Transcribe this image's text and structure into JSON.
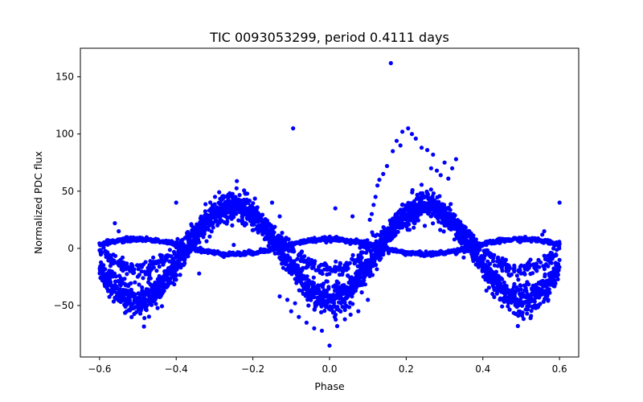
{
  "chart_data": {
    "type": "scatter",
    "title": "TIC 0093053299, period 0.4111 days",
    "xlabel": "Phase",
    "ylabel": "Normalized PDC flux",
    "xlim": [
      -0.65,
      0.65
    ],
    "ylim": [
      -95,
      175
    ],
    "xticks": [
      -0.6,
      -0.4,
      -0.2,
      0.0,
      0.2,
      0.4,
      0.6
    ],
    "xtick_labels": [
      "−0.6",
      "−0.4",
      "−0.2",
      "0.0",
      "0.2",
      "0.4",
      "0.6"
    ],
    "yticks": [
      -50,
      0,
      50,
      100,
      150
    ],
    "ytick_labels": [
      "−50",
      "0",
      "50",
      "100",
      "150"
    ],
    "grid": false,
    "color": "#0000ff",
    "model": {
      "description": "dense phase-folded light curve, period 0.4111 d",
      "phase_range": [
        -0.6,
        0.6
      ],
      "main_band": {
        "min": -45,
        "max": 37,
        "minimum_phase": 0.0,
        "maximum_phase": 0.25
      },
      "secondary_band": {
        "min": -5,
        "max": 8,
        "minimum_phase": -0.25,
        "maximum_phase": 0.0
      }
    },
    "points": [
      [
        0.16,
        162
      ],
      [
        -0.095,
        105
      ],
      [
        0.205,
        105
      ],
      [
        0.215,
        100
      ],
      [
        0.19,
        102
      ],
      [
        0.225,
        96
      ],
      [
        0.175,
        94
      ],
      [
        0.24,
        88
      ],
      [
        0.255,
        86
      ],
      [
        0.165,
        85
      ],
      [
        0.185,
        90
      ],
      [
        0.27,
        82
      ],
      [
        0.3,
        75
      ],
      [
        0.33,
        78
      ],
      [
        0.32,
        70
      ],
      [
        0.15,
        72
      ],
      [
        0.14,
        65
      ],
      [
        0.13,
        60
      ],
      [
        0.125,
        55
      ],
      [
        0.28,
        68
      ],
      [
        0.29,
        64
      ],
      [
        0.31,
        61
      ],
      [
        0.265,
        70
      ],
      [
        0.12,
        45
      ],
      [
        0.115,
        38
      ],
      [
        0.11,
        30
      ],
      [
        0.105,
        25
      ],
      [
        -0.15,
        40
      ],
      [
        -0.4,
        40
      ],
      [
        0.6,
        40
      ],
      [
        0.015,
        35
      ],
      [
        0.06,
        28
      ],
      [
        -0.13,
        28
      ],
      [
        0.1,
        -45
      ],
      [
        -0.13,
        -42
      ],
      [
        0.0,
        -85
      ],
      [
        -0.1,
        -55
      ],
      [
        -0.08,
        -60
      ],
      [
        -0.06,
        -65
      ],
      [
        -0.04,
        -70
      ],
      [
        -0.02,
        -72
      ],
      [
        0.02,
        -68
      ],
      [
        0.04,
        -62
      ],
      [
        -0.055,
        -50
      ],
      [
        0.075,
        -55
      ],
      [
        -0.11,
        -45
      ],
      [
        -0.09,
        -48
      ],
      [
        0.055,
        -58
      ],
      [
        -0.56,
        22
      ],
      [
        -0.55,
        15
      ],
      [
        0.56,
        15
      ],
      [
        0.555,
        12
      ],
      [
        -0.5,
        -15
      ],
      [
        -0.48,
        -12
      ],
      [
        0.5,
        -15
      ],
      [
        0.52,
        -12
      ],
      [
        -0.3,
        -5
      ],
      [
        -0.25,
        3
      ],
      [
        0.35,
        -8
      ],
      [
        0.33,
        -5
      ],
      [
        -0.34,
        -22
      ],
      [
        -0.54,
        -8
      ],
      [
        -0.46,
        -8
      ],
      [
        0.44,
        -8
      ],
      [
        0.45,
        -12
      ],
      [
        0.46,
        -10
      ],
      [
        -0.52,
        -20
      ],
      [
        -0.47,
        -18
      ],
      [
        0.48,
        -18
      ],
      [
        0.5,
        -22
      ],
      [
        -0.36,
        20
      ],
      [
        -0.32,
        25
      ],
      [
        0.3,
        20
      ],
      [
        0.34,
        18
      ]
    ],
    "point_count_note": "dense curve of several thousand observations"
  }
}
